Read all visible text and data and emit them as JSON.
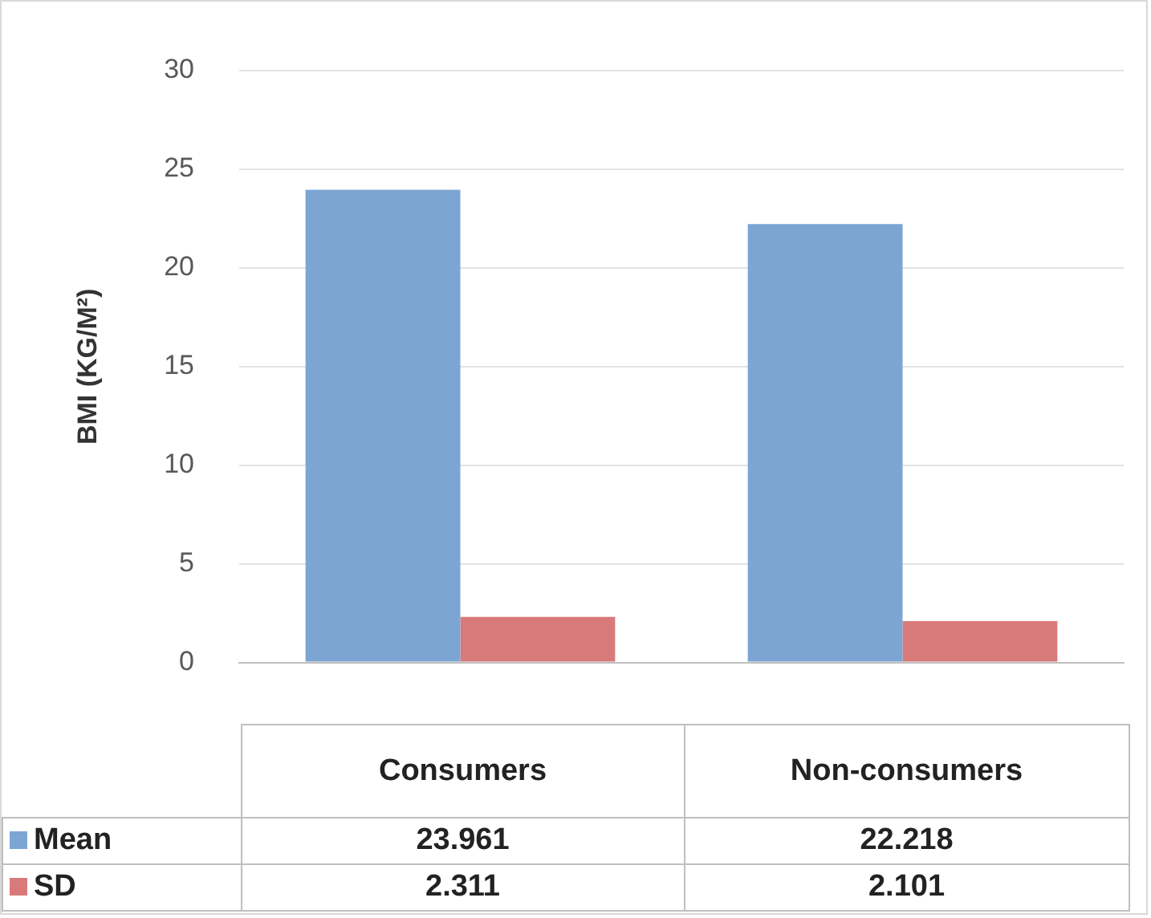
{
  "chart_data": {
    "type": "bar",
    "ylabel": "BMI (KG/M²)",
    "categories": [
      "Consumers",
      "Non-consumers"
    ],
    "series": [
      {
        "name": "Mean",
        "color": "#7ca5d4",
        "values": [
          23.961,
          22.218
        ]
      },
      {
        "name": "SD",
        "color": "#d97a7a",
        "values": [
          2.311,
          2.101
        ]
      }
    ],
    "ylim": [
      0,
      30
    ],
    "yticks": [
      0,
      5,
      10,
      15,
      20,
      25,
      30
    ],
    "grid": "y",
    "legend": "bottom",
    "data_labels": true
  }
}
